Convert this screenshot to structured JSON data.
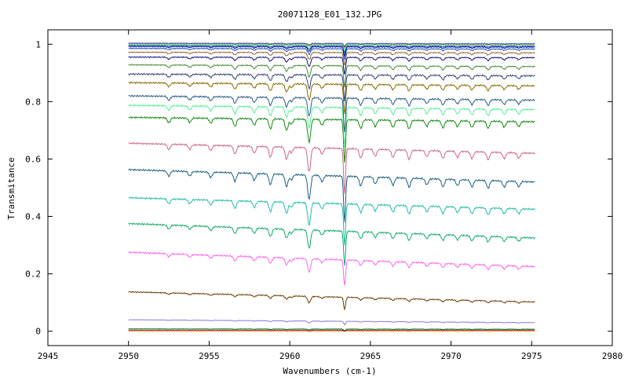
{
  "chart_data": {
    "type": "line",
    "title": "20071128_E01_132.JPG",
    "xlabel": "Wavenumbers (cm-1)",
    "ylabel": "Transmitance",
    "xlim": [
      2945,
      2980
    ],
    "ylim": [
      -0.05,
      1.05
    ],
    "xticks": [
      2945,
      2950,
      2955,
      2960,
      2965,
      2970,
      2975,
      2980
    ],
    "xtick_labels": [
      "2945",
      "2950",
      "2955",
      "2960",
      "2965",
      "2970",
      "2975",
      "2980"
    ],
    "yticks": [
      0,
      0.2,
      0.4,
      0.6,
      0.8,
      1
    ],
    "ytick_labels": [
      "0",
      "0.2",
      "0.4",
      "0.6",
      "0.8",
      "1"
    ],
    "grid": false,
    "legend": "none",
    "x_range_of_data": [
      2950,
      2975.2
    ],
    "absorption_lines_cm1": [
      2952.5,
      2953.8,
      2955.1,
      2956.6,
      2957.8,
      2958.8,
      2959.8,
      2960.1,
      2961.2,
      2962.0,
      2963.4,
      2964.4,
      2965.3,
      2966.4,
      2967.4,
      2968.5,
      2969.5,
      2970.4,
      2971.3,
      2972.3,
      2973.3,
      2974.2
    ],
    "absorption_relative_depth": [
      0.35,
      0.3,
      0.35,
      0.55,
      0.45,
      0.7,
      0.8,
      0.35,
      1.6,
      0.4,
      3.0,
      0.6,
      0.45,
      0.5,
      0.6,
      0.4,
      0.5,
      0.4,
      0.45,
      0.5,
      0.4,
      0.35
    ],
    "series": [
      {
        "color": "#ffd700",
        "baseline_start": 0.0,
        "baseline_end": 0.0,
        "noise": 0.003,
        "depth": 0.0
      },
      {
        "color": "#a000a0",
        "baseline_start": 0.003,
        "baseline_end": 0.003,
        "noise": 0.001,
        "depth": 0.001
      },
      {
        "color": "#006400",
        "baseline_start": 0.008,
        "baseline_end": 0.007,
        "noise": 0.001,
        "depth": 0.002
      },
      {
        "color": "#8a7be0",
        "baseline_start": 0.04,
        "baseline_end": 0.03,
        "noise": 0.001,
        "depth": 0.004
      },
      {
        "color": "#6b3a00",
        "baseline_start": 0.137,
        "baseline_end": 0.102,
        "noise": 0.002,
        "depth": 0.014
      },
      {
        "color": "#ff66ee",
        "baseline_start": 0.275,
        "baseline_end": 0.225,
        "noise": 0.003,
        "depth": 0.03
      },
      {
        "color": "#11aa66",
        "baseline_start": 0.375,
        "baseline_end": 0.325,
        "noise": 0.003,
        "depth": 0.04
      },
      {
        "color": "#22bbaa",
        "baseline_start": 0.465,
        "baseline_end": 0.425,
        "noise": 0.003,
        "depth": 0.048
      },
      {
        "color": "#1a5e80",
        "baseline_start": 0.563,
        "baseline_end": 0.52,
        "noise": 0.003,
        "depth": 0.053
      },
      {
        "color": "#cc6688",
        "baseline_start": 0.655,
        "baseline_end": 0.62,
        "noise": 0.003,
        "depth": 0.053
      },
      {
        "color": "#118811",
        "baseline_start": 0.745,
        "baseline_end": 0.73,
        "noise": 0.003,
        "depth": 0.05
      },
      {
        "color": "#55ee99",
        "baseline_start": 0.787,
        "baseline_end": 0.772,
        "noise": 0.003,
        "depth": 0.045
      },
      {
        "color": "#2a5a8a",
        "baseline_start": 0.82,
        "baseline_end": 0.805,
        "noise": 0.003,
        "depth": 0.04
      },
      {
        "color": "#8a6a00",
        "baseline_start": 0.866,
        "baseline_end": 0.855,
        "noise": 0.003,
        "depth": 0.035
      },
      {
        "color": "#334477",
        "baseline_start": 0.896,
        "baseline_end": 0.89,
        "noise": 0.003,
        "depth": 0.03
      },
      {
        "color": "#448833",
        "baseline_start": 0.928,
        "baseline_end": 0.922,
        "noise": 0.002,
        "depth": 0.025
      },
      {
        "color": "#111188",
        "baseline_start": 0.955,
        "baseline_end": 0.953,
        "noise": 0.002,
        "depth": 0.02
      },
      {
        "color": "#996633",
        "baseline_start": 0.972,
        "baseline_end": 0.97,
        "noise": 0.002,
        "depth": 0.015
      },
      {
        "color": "#2255aa",
        "baseline_start": 0.985,
        "baseline_end": 0.983,
        "noise": 0.002,
        "depth": 0.012
      },
      {
        "color": "#0000cc",
        "baseline_start": 0.992,
        "baseline_end": 0.99,
        "noise": 0.002,
        "depth": 0.01
      },
      {
        "color": "#006655",
        "baseline_start": 0.996,
        "baseline_end": 0.994,
        "noise": 0.001,
        "depth": 0.008
      },
      {
        "color": "#66ddaa",
        "baseline_start": 1.0,
        "baseline_end": 0.999,
        "noise": 0.001,
        "depth": 0.006
      },
      {
        "color": "#aa2222",
        "baseline_start": 1.003,
        "baseline_end": 1.001,
        "noise": 0.001,
        "depth": 0.004
      },
      {
        "color": "#4477cc",
        "baseline_start": 1.004,
        "baseline_end": 1.002,
        "noise": 0.001,
        "depth": 0.003
      }
    ]
  }
}
